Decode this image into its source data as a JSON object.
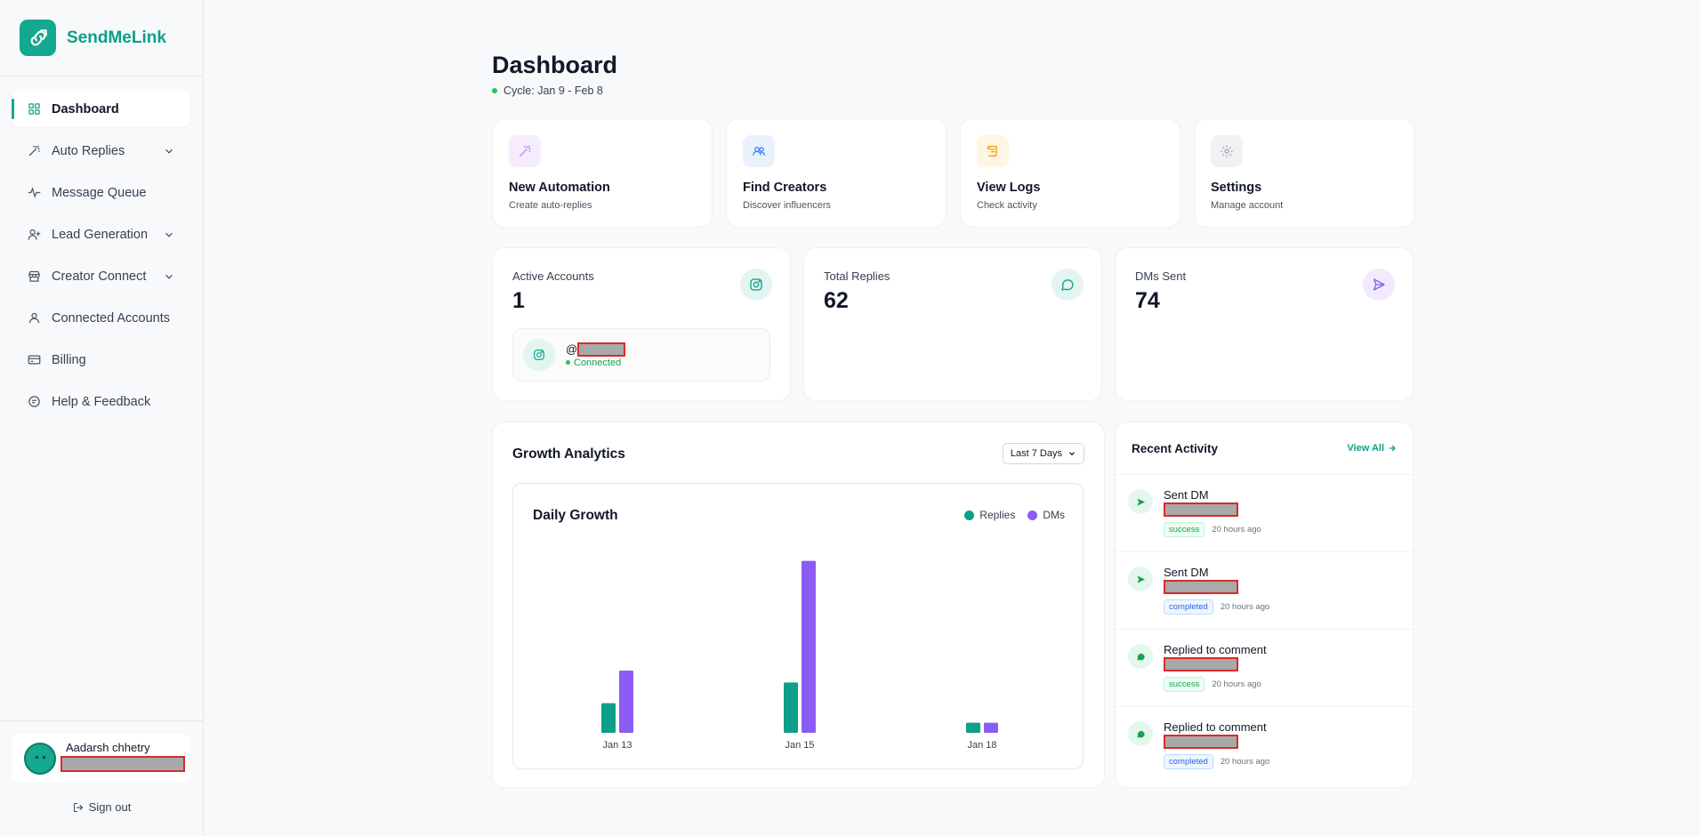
{
  "brand": {
    "name": "SendMeLink"
  },
  "nav": [
    {
      "label": "Dashboard",
      "icon": "grid-icon",
      "active": true,
      "expandable": false
    },
    {
      "label": "Auto Replies",
      "icon": "magic-wand-icon",
      "expandable": true
    },
    {
      "label": "Message Queue",
      "icon": "activity-icon",
      "expandable": false
    },
    {
      "label": "Lead Generation",
      "icon": "user-plus-icon",
      "expandable": true
    },
    {
      "label": "Creator Connect",
      "icon": "store-icon",
      "expandable": true
    },
    {
      "label": "Connected Accounts",
      "icon": "user-icon",
      "expandable": false
    },
    {
      "label": "Billing",
      "icon": "credit-card-icon",
      "expandable": false
    },
    {
      "label": "Help & Feedback",
      "icon": "message-icon",
      "expandable": false
    }
  ],
  "user": {
    "name": "Aadarsh chhetry",
    "signout_label": "Sign out"
  },
  "header": {
    "title": "Dashboard",
    "cycle": "Cycle: Jan 9 - Feb 8"
  },
  "quick_actions": [
    {
      "title": "New Automation",
      "subtitle": "Create auto-replies",
      "icon": "magic-wand-icon",
      "color": "#c084fc",
      "bg": "#f5ecfe"
    },
    {
      "title": "Find Creators",
      "subtitle": "Discover influencers",
      "icon": "users-icon",
      "color": "#3b82f6",
      "bg": "#eaf1fd"
    },
    {
      "title": "View Logs",
      "subtitle": "Check activity",
      "icon": "scroll-icon",
      "color": "#f59e0b",
      "bg": "#fef5e4"
    },
    {
      "title": "Settings",
      "subtitle": "Manage account",
      "icon": "gear-icon",
      "color": "#9ca3af",
      "bg": "#f0f1f3"
    }
  ],
  "stats": [
    {
      "label": "Active Accounts",
      "value": "1",
      "icon": "instagram-icon",
      "color": "#0d9f88",
      "bg": "#e3f5f1"
    },
    {
      "label": "Total Replies",
      "value": "62",
      "icon": "chat-bubble-icon",
      "color": "#0d9f88",
      "bg": "#e3f5f1"
    },
    {
      "label": "DMs Sent",
      "value": "74",
      "icon": "send-icon",
      "color": "#8b5cf6",
      "bg": "#f1ebfd"
    }
  ],
  "account": {
    "handle_prefix": "@",
    "status": "Connected"
  },
  "growth": {
    "title": "Growth Analytics",
    "range": "Last 7 Days"
  },
  "chart_data": {
    "type": "bar",
    "title": "Daily Growth",
    "categories": [
      "Jan 13",
      "Jan 15",
      "Jan 18"
    ],
    "series": [
      {
        "name": "Replies",
        "values": [
          5,
          8.5,
          1.7
        ],
        "color": "#0d9f88"
      },
      {
        "name": "DMs",
        "values": [
          10.5,
          29,
          1.7
        ],
        "color": "#8b5cf6"
      }
    ],
    "ylim": [
      0,
      30
    ],
    "legend": "top-right",
    "grid": false
  },
  "activity": {
    "title": "Recent Activity",
    "view_all": "View All",
    "items": [
      {
        "action": "Sent DM",
        "status": "success",
        "time": "20 hours ago",
        "icon": "send-icon"
      },
      {
        "action": "Sent DM",
        "status": "completed",
        "time": "20 hours ago",
        "icon": "send-icon"
      },
      {
        "action": "Replied to comment",
        "status": "success",
        "time": "20 hours ago",
        "icon": "chat-bubble-icon"
      },
      {
        "action": "Replied to comment",
        "status": "completed",
        "time": "20 hours ago",
        "icon": "chat-bubble-icon"
      }
    ]
  }
}
